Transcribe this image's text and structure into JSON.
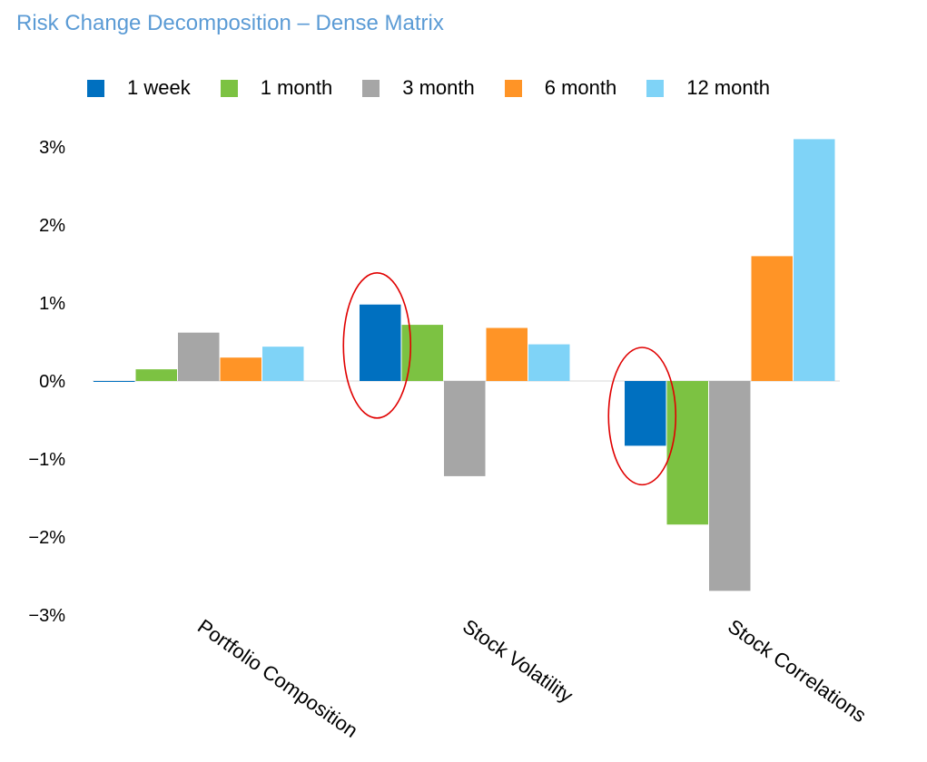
{
  "title": "Risk Change Decomposition – Dense Matrix",
  "chart_data": {
    "type": "bar",
    "categories": [
      "Portfolio Composition",
      "Stock Volatility",
      "Stock Correlations"
    ],
    "series": [
      {
        "name": "1 week",
        "color": "#0070c0",
        "values": [
          0.0,
          0.98,
          -0.83
        ]
      },
      {
        "name": "1 month",
        "color": "#7cc242",
        "values": [
          0.15,
          0.72,
          -1.84
        ]
      },
      {
        "name": "3 month",
        "color": "#a6a6a6",
        "values": [
          0.62,
          -1.22,
          -2.69
        ]
      },
      {
        "name": "6 month",
        "color": "#ff9426",
        "values": [
          0.3,
          0.68,
          1.6
        ]
      },
      {
        "name": "12 month",
        "color": "#7fd3f7",
        "values": [
          0.44,
          0.47,
          3.1
        ]
      }
    ],
    "yticks": [
      "3%",
      "2%",
      "1%",
      "0%",
      "−1%",
      "−2%",
      "−3%"
    ],
    "ylim": [
      -3,
      3
    ],
    "xlabel": "",
    "ylabel": "",
    "grid": false,
    "legend": "top",
    "annotations": [
      {
        "type": "ellipse",
        "color": "#e00000",
        "category": "Stock Volatility",
        "series": "1 week"
      },
      {
        "type": "ellipse",
        "color": "#e00000",
        "category": "Stock Correlations",
        "series": "1 week"
      }
    ]
  }
}
